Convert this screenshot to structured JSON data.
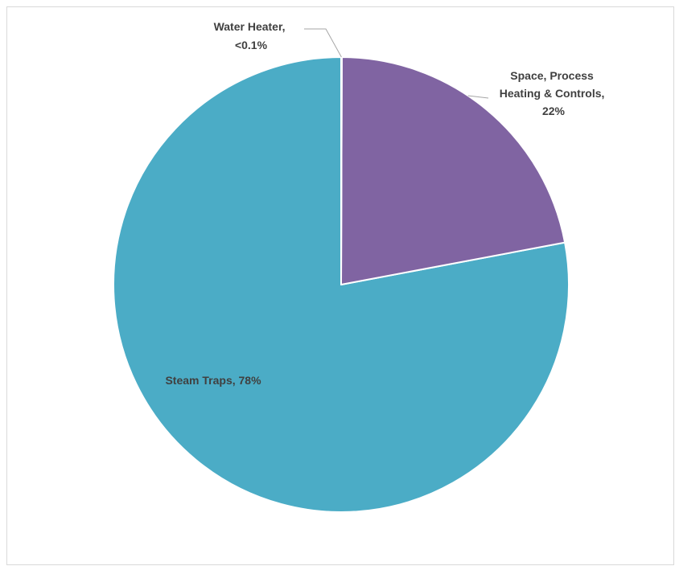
{
  "chart_data": {
    "type": "pie",
    "title": "",
    "start_angle_deg": 0,
    "direction": "clockwise",
    "slices": [
      {
        "label_lines": [
          "Water Heater,",
          "<0.1%"
        ],
        "value": 0.05,
        "display_value": "<0.1%",
        "color": "#4BACC6"
      },
      {
        "label_lines": [
          "Space, Process",
          "Heating & Controls,",
          "22%"
        ],
        "value": 22,
        "display_value": "22%",
        "color": "#8064A2"
      },
      {
        "label_lines": [
          "Steam Traps, 78%"
        ],
        "value": 78,
        "display_value": "78%",
        "color": "#4BACC6"
      }
    ],
    "slice_border_color": "#FFFFFF",
    "leader_line_color": "#A6A6A6",
    "legend": "none"
  }
}
